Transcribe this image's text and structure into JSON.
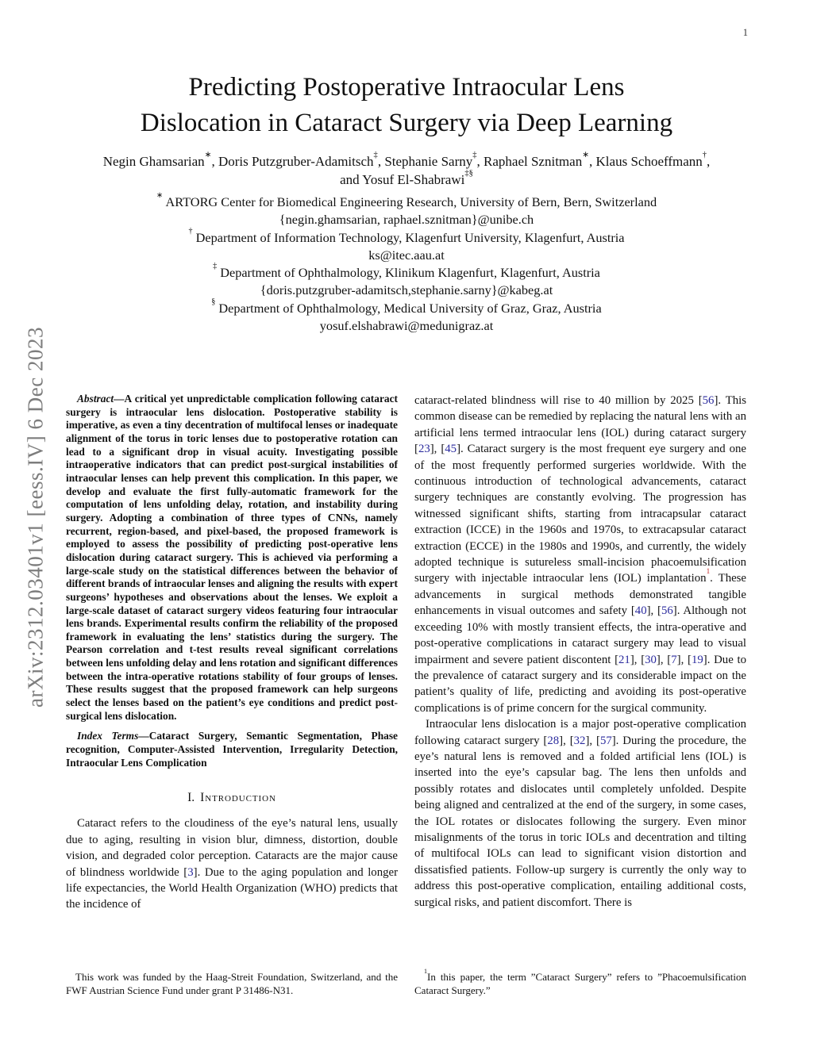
{
  "colors": {
    "citation": "#2b2b9e",
    "footnote_marker": "#c52a2a",
    "sidebar_text": "#7d7d7d"
  },
  "page": {
    "number": "1"
  },
  "sidebar": {
    "arxiv_label": "arXiv:2312.03401v1  [eess.IV]  6 Dec 2023"
  },
  "header": {
    "title_line1": "Predicting Postoperative Intraocular Lens",
    "title_line2": "Dislocation in Cataract Surgery via Deep Learning",
    "authors_line1": [
      {
        "t": "Negin Ghamsarian"
      },
      {
        "s": "∗"
      },
      {
        "t": ", Doris Putzgruber-Adamitsch"
      },
      {
        "s": "‡"
      },
      {
        "t": ", Stephanie Sarny"
      },
      {
        "s": "‡"
      },
      {
        "t": ", Raphael Sznitman"
      },
      {
        "s": "∗"
      },
      {
        "t": ", Klaus Schoeffmann"
      },
      {
        "s": "†"
      },
      {
        "t": ","
      }
    ],
    "authors_line2": [
      {
        "t": "and Yosuf El-Shabrawi"
      },
      {
        "s": "‡§"
      }
    ],
    "affiliations": [
      {
        "segments": [
          {
            "s": "∗"
          },
          {
            "t": " ARTORG Center for Biomedical Engineering Research, University of Bern, Bern, Switzerland"
          }
        ]
      },
      {
        "segments": [
          {
            "t": "{negin.ghamsarian, raphael.sznitman}@unibe.ch"
          }
        ]
      },
      {
        "segments": [
          {
            "s": "†"
          },
          {
            "t": " Department of Information Technology, Klagenfurt University, Klagenfurt, Austria"
          }
        ]
      },
      {
        "segments": [
          {
            "t": "ks@itec.aau.at"
          }
        ]
      },
      {
        "segments": [
          {
            "s": "‡"
          },
          {
            "t": " Department of Ophthalmology, Klinikum Klagenfurt, Klagenfurt, Austria"
          }
        ]
      },
      {
        "segments": [
          {
            "t": "{doris.putzgruber-adamitsch,stephanie.sarny}@kabeg.at"
          }
        ]
      },
      {
        "segments": [
          {
            "s": "§"
          },
          {
            "t": " Department of Ophthalmology, Medical University of Graz, Graz, Austria"
          }
        ]
      },
      {
        "segments": [
          {
            "t": "yosuf.elshabrawi@medunigraz.at"
          }
        ]
      }
    ]
  },
  "left_column": {
    "abstract": {
      "lead": "Abstract",
      "dash": "—",
      "body": "A critical yet unpredictable complication following cataract surgery is intraocular lens dislocation. Postoperative stability is imperative, as even a tiny decentration of multifocal lenses or inadequate alignment of the torus in toric lenses due to postoperative rotation can lead to a significant drop in visual acuity. Investigating possible intraoperative indicators that can predict post-surgical instabilities of intraocular lenses can help prevent this complication. In this paper, we develop and evaluate the first fully-automatic framework for the computation of lens unfolding delay, rotation, and instability during surgery. Adopting a combination of three types of CNNs, namely recurrent, region-based, and pixel-based, the proposed framework is employed to assess the possibility of predicting post-operative lens dislocation during cataract surgery. This is achieved via performing a large-scale study on the statistical differences between the behavior of different brands of intraocular lenses and aligning the results with expert surgeons’ hypotheses and observations about the lenses. We exploit a large-scale dataset of cataract surgery videos featuring four intraocular lens brands. Experimental results confirm the reliability of the proposed framework in evaluating the lens’ statistics during the surgery. The Pearson correlation and t-test results reveal significant correlations between lens unfolding delay and lens rotation and significant differences between the intra-operative rotations stability of four groups of lenses. These results suggest that the proposed framework can help surgeons select the lenses based on the patient’s eye conditions and predict post-surgical lens dislocation."
    },
    "index_terms": {
      "lead": "Index Terms",
      "dash": "—",
      "body": "Cataract Surgery, Semantic Segmentation, Phase recognition, Computer-Assisted Intervention, Irregularity Detection, Intraocular Lens Complication"
    },
    "section": {
      "number": "I.",
      "title": "Introduction"
    },
    "intro_paragraph": {
      "segments": [
        {
          "t": "Cataract refers to the cloudiness of the eye’s natural lens, usually due to aging, resulting in vision blur, dimness, distortion, double vision, and degraded color perception. Cataracts are the major cause of blindness worldwide "
        },
        {
          "c": "3"
        },
        {
          "t": ". Due to the aging population and longer life expectancies, the World Health Organization (WHO) predicts that the incidence of"
        }
      ]
    },
    "footnote": "This work was funded by the Haag-Streit Foundation, Switzerland, and the FWF Austrian Science Fund under grant P 31486-N31."
  },
  "right_column": {
    "paragraphs": [
      {
        "segments": [
          {
            "t": "cataract-related blindness will rise to 40 million by 2025 "
          },
          {
            "c": "56"
          },
          {
            "t": ". This common disease can be remedied by replacing the natural lens with an artificial lens termed intraocular lens (IOL) during cataract surgery "
          },
          {
            "c": "23"
          },
          {
            "t": ", "
          },
          {
            "c": "45"
          },
          {
            "t": ". Cataract surgery is the most frequent eye surgery and one of the most frequently performed surgeries worldwide. With the continuous introduction of technological advancements, cataract surgery techniques are constantly evolving. The progression has witnessed significant shifts, starting from intracapsular cataract extraction (ICCE) in the 1960s and 1970s, to extracapsular cataract extraction (ECCE) in the 1980s and 1990s, and currently, the widely adopted technique is sutureless small-incision phacoemulsification surgery with injectable intraocular lens (IOL) implantation"
          },
          {
            "r": "1"
          },
          {
            "t": ". These advancements in surgical methods demonstrated tangible enhancements in visual outcomes and safety "
          },
          {
            "c": "40"
          },
          {
            "t": ", "
          },
          {
            "c": "56"
          },
          {
            "t": ". Although not exceeding 10% with mostly transient effects, the intra-operative and post-operative complications in cataract surgery may lead to visual impairment and severe patient discontent "
          },
          {
            "c": "21"
          },
          {
            "t": ", "
          },
          {
            "c": "30"
          },
          {
            "t": ", "
          },
          {
            "c": "7"
          },
          {
            "t": ", "
          },
          {
            "c": "19"
          },
          {
            "t": ". Due to the prevalence of cataract surgery and its considerable impact on the patient’s quality of life, predicting and avoiding its post-operative complications is of prime concern for the surgical community."
          }
        ]
      },
      {
        "segments": [
          {
            "t": "Intraocular lens dislocation is a major post-operative complication following cataract surgery "
          },
          {
            "c": "28"
          },
          {
            "t": ", "
          },
          {
            "c": "32"
          },
          {
            "t": ", "
          },
          {
            "c": "57"
          },
          {
            "t": ". During the procedure, the eye’s natural lens is removed and a folded artificial lens (IOL) is inserted into the eye’s capsular bag. The lens then unfolds and possibly rotates and dislocates until completely unfolded. Despite being aligned and centralized at the end of the surgery, in some cases, the IOL rotates or dislocates following the surgery. Even minor misalignments of the torus in toric IOLs and decentration and tilting of multifocal IOLs can lead to significant vision distortion and dissatisfied patients. Follow-up surgery is currently the only way to address this post-operative complication, entailing additional costs, surgical risks, and patient discomfort. There is"
          }
        ]
      }
    ],
    "footnote": {
      "segments": [
        {
          "s": "1"
        },
        {
          "t": "In this paper, the term ”Cataract Surgery” refers to ”Phacoemulsification Cataract Surgery.”"
        }
      ]
    }
  }
}
